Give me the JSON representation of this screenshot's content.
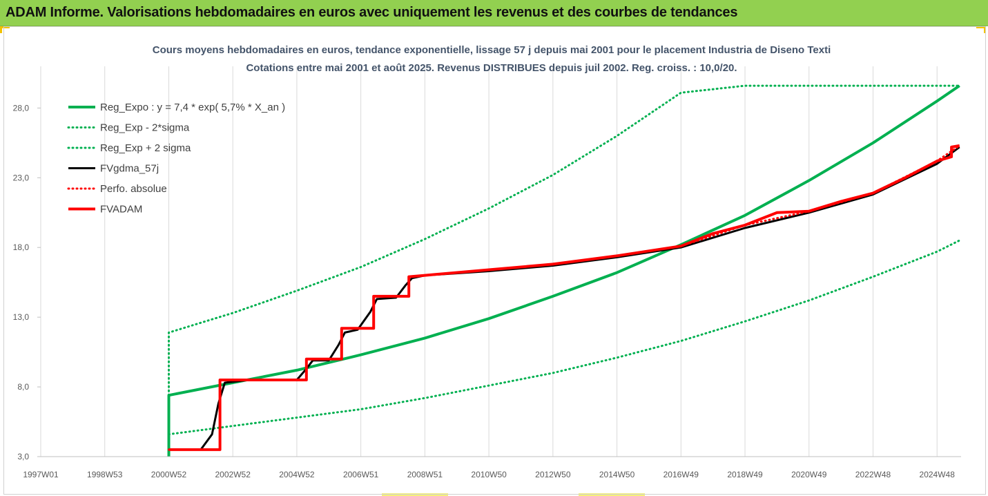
{
  "banner": {
    "title": "ADAM Informe. Valorisations hebdomadaires en euros avec uniquement les revenus et des courbes de tendances"
  },
  "chart_data": {
    "type": "line",
    "title": "Cours moyens hebdomadaires en euros, tendance exponentielle, lissage 57 j depuis mai 2001 pour le placement Industria de Diseno Texti",
    "subtitle": "Cotations entre mai 2001 et août 2025.  Revenus DISTRIBUES depuis juil 2002. Reg. croiss. : 10,0/20.",
    "xlabel": "",
    "ylabel": "",
    "ylim": [
      3.0,
      30.0
    ],
    "yticks": [
      "3,0",
      "8,0",
      "13,0",
      "18,0",
      "23,0",
      "28,0"
    ],
    "ytick_values": [
      3,
      8,
      13,
      18,
      23,
      28
    ],
    "xlim": [
      1997.0,
      2025.75
    ],
    "xticks": [
      "1997W01",
      "1998W53",
      "2000W52",
      "2002W52",
      "2004W52",
      "2006W51",
      "2008W51",
      "2010W50",
      "2012W50",
      "2014W50",
      "2016W49",
      "2018W49",
      "2020W49",
      "2022W48",
      "2024W48"
    ],
    "xtick_values": [
      1997.0,
      1999.0,
      2001.0,
      2003.0,
      2005.0,
      2007.0,
      2009.0,
      2011.0,
      2013.0,
      2015.0,
      2017.0,
      2019.0,
      2021.0,
      2023.0,
      2025.0
    ],
    "grid": "vertical",
    "legend_position": "top-left",
    "colors": {
      "green": "#00b050",
      "black": "#000000",
      "red": "#ff0000"
    },
    "series": [
      {
        "name": "Reg_Expo : y = 7,4 * exp( 5,7% *  X_an )",
        "style": "solid",
        "color": "#00b050",
        "x": [
          2001.0,
          2001.0,
          2003.0,
          2005.0,
          2007.0,
          2009.0,
          2011.0,
          2013.0,
          2015.0,
          2017.0,
          2019.0,
          2021.0,
          2023.0,
          2025.0,
          2025.7
        ],
        "y": [
          3.0,
          7.4,
          8.3,
          9.2,
          10.3,
          11.5,
          12.9,
          14.5,
          16.2,
          18.2,
          20.3,
          22.8,
          25.5,
          28.5,
          29.6
        ]
      },
      {
        "name": "Reg_Exp - 2*sigma",
        "style": "dotted",
        "color": "#00b050",
        "x": [
          2001.0,
          2003.0,
          2005.0,
          2007.0,
          2009.0,
          2011.0,
          2013.0,
          2015.0,
          2017.0,
          2019.0,
          2021.0,
          2023.0,
          2025.0,
          2025.7
        ],
        "y": [
          4.6,
          5.2,
          5.8,
          6.4,
          7.2,
          8.1,
          9.0,
          10.1,
          11.3,
          12.7,
          14.2,
          15.9,
          17.7,
          18.5
        ]
      },
      {
        "name": "Reg_Exp + 2 sigma",
        "style": "dotted",
        "color": "#00b050",
        "x": [
          2001.0,
          2001.0,
          2003.0,
          2005.0,
          2007.0,
          2009.0,
          2011.0,
          2013.0,
          2015.0,
          2017.0,
          2019.0,
          2021.0,
          2023.0,
          2025.0,
          2025.7
        ],
        "y": [
          7.4,
          11.9,
          13.3,
          14.9,
          16.6,
          18.6,
          20.8,
          23.2,
          26.0,
          29.1,
          29.6,
          29.6,
          29.6,
          29.6,
          29.6
        ]
      },
      {
        "name": "FVgdma_57j",
        "style": "solid",
        "color": "#000000",
        "x": [
          2001.0,
          2002.0,
          2002.35,
          2002.55,
          2002.75,
          2003.5,
          2005.0,
          2005.3,
          2005.5,
          2006.0,
          2006.3,
          2006.5,
          2006.9,
          2007.3,
          2007.5,
          2008.1,
          2008.4,
          2008.6,
          2009.0,
          2011.0,
          2013.0,
          2015.0,
          2017.0,
          2019.0,
          2021.0,
          2023.0,
          2025.0,
          2025.7
        ],
        "y": [
          3.5,
          3.5,
          4.6,
          6.8,
          8.3,
          8.5,
          8.5,
          9.3,
          9.9,
          9.9,
          11.0,
          11.9,
          12.1,
          13.4,
          14.3,
          14.4,
          15.3,
          15.8,
          16.0,
          16.3,
          16.7,
          17.3,
          18.0,
          19.4,
          20.5,
          21.8,
          24.0,
          25.2
        ]
      },
      {
        "name": "Perfo. absolue",
        "style": "dotted",
        "color": "#ff0000",
        "x": [
          2001.0,
          2002.6,
          2002.6,
          2005.3,
          2005.3,
          2006.4,
          2006.4,
          2007.4,
          2007.4,
          2008.5,
          2008.5,
          2011.0,
          2013.0,
          2015.0,
          2017.0,
          2019.0,
          2021.0,
          2023.0,
          2025.0,
          2025.7
        ],
        "y": [
          3.5,
          3.5,
          8.5,
          8.5,
          10.0,
          10.0,
          12.2,
          12.2,
          14.5,
          14.5,
          15.9,
          16.4,
          16.8,
          17.4,
          18.1,
          19.6,
          20.6,
          21.9,
          24.2,
          25.3
        ]
      },
      {
        "name": "FVADAM",
        "style": "solid",
        "color": "#ff0000",
        "x": [
          2001.0,
          2002.6,
          2002.6,
          2005.3,
          2005.3,
          2006.4,
          2006.4,
          2007.4,
          2007.4,
          2008.5,
          2008.5,
          2009.0,
          2011.0,
          2013.0,
          2015.0,
          2017.0,
          2018.0,
          2019.0,
          2020.0,
          2021.0,
          2022.0,
          2023.0,
          2024.0,
          2025.0,
          2025.45,
          2025.45,
          2025.7
        ],
        "y": [
          3.5,
          3.5,
          8.5,
          8.5,
          10.0,
          10.0,
          12.2,
          12.2,
          14.5,
          14.5,
          15.9,
          16.0,
          16.4,
          16.8,
          17.4,
          18.1,
          19.0,
          19.6,
          20.5,
          20.6,
          21.3,
          21.9,
          23.0,
          24.2,
          24.5,
          25.2,
          25.3
        ]
      }
    ]
  }
}
